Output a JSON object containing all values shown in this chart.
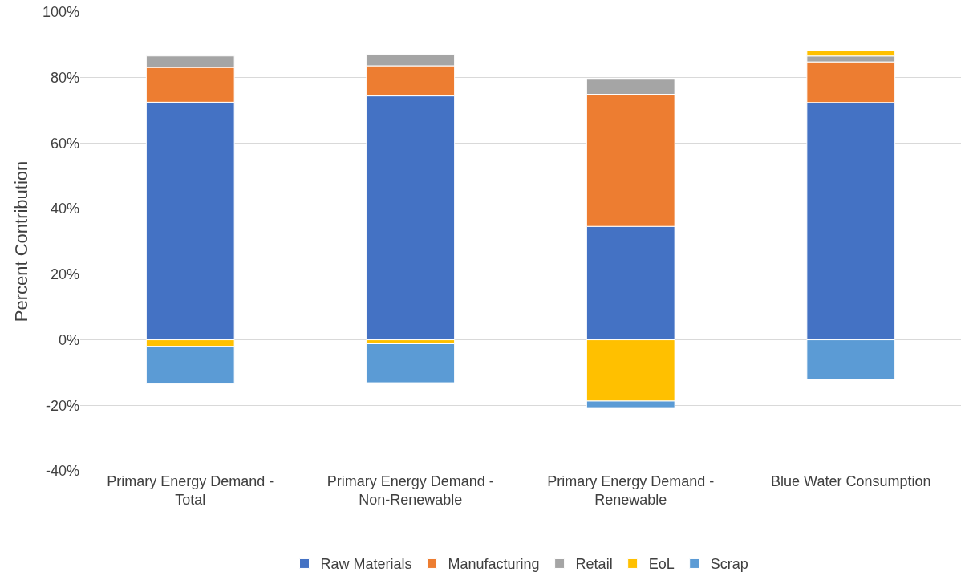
{
  "chart_data": {
    "type": "bar",
    "stacked": true,
    "ylabel": "Percent Contribution",
    "categories": [
      "Primary Energy Demand - Total",
      "Primary Energy Demand - Non-Renewable",
      "Primary Energy Demand - Renewable",
      "Blue Water Consumption"
    ],
    "series": [
      {
        "name": "Raw Materials",
        "color": "#4472c4",
        "values": [
          72.5,
          74.4,
          34.6,
          72.4
        ]
      },
      {
        "name": "Manufacturing",
        "color": "#ed7d31",
        "values": [
          10.6,
          9.2,
          40.3,
          12.4
        ]
      },
      {
        "name": "Retail",
        "color": "#a5a5a5",
        "values": [
          3.5,
          3.5,
          4.6,
          1.8
        ]
      },
      {
        "name": "EoL",
        "color": "#ffc000",
        "values": [
          -2,
          -1.2,
          -18.7,
          1.6
        ]
      },
      {
        "name": "Scrap",
        "color": "#5b9bd5",
        "values": [
          -11.4,
          -11.9,
          -2,
          -12
        ]
      }
    ],
    "ylim": [
      -40,
      100
    ],
    "yticks": [
      {
        "value": -40,
        "label": "-40%"
      },
      {
        "value": -20,
        "label": "-20%"
      },
      {
        "value": 0,
        "label": "0%"
      },
      {
        "value": 20,
        "label": "20%"
      },
      {
        "value": 40,
        "label": "40%"
      },
      {
        "value": 60,
        "label": "60%"
      },
      {
        "value": 80,
        "label": "80%"
      },
      {
        "value": 100,
        "label": "100%"
      }
    ],
    "grid": "y",
    "legend": "bottom"
  }
}
